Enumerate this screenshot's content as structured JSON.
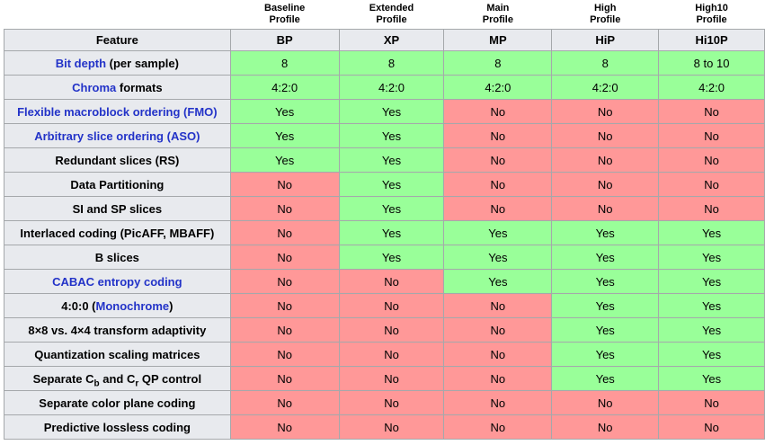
{
  "colors": {
    "yes_bg": "#99FF99",
    "no_bg": "#FF9898",
    "header_bg": "#E8EAEE",
    "border": "#A5A8AB",
    "link": "#2333C8",
    "text": "#000000",
    "page_bg": "#FFFFFF"
  },
  "table": {
    "profile_labels": [
      "Baseline\nProfile",
      "Extended\nProfile",
      "Main\nProfile",
      "High\nProfile",
      "High10\nProfile"
    ],
    "header": {
      "feature": "Feature",
      "columns": [
        "BP",
        "XP",
        "MP",
        "HiP",
        "Hi10P"
      ]
    },
    "rows": [
      {
        "feature": [
          {
            "t": "Bit depth",
            "link": true
          },
          {
            "t": " (per sample)"
          }
        ],
        "values": [
          {
            "t": "8",
            "s": "yes"
          },
          {
            "t": "8",
            "s": "yes"
          },
          {
            "t": "8",
            "s": "yes"
          },
          {
            "t": "8",
            "s": "yes"
          },
          {
            "t": "8 to 10",
            "s": "yes"
          }
        ]
      },
      {
        "feature": [
          {
            "t": "Chroma",
            "link": true
          },
          {
            "t": " formats"
          }
        ],
        "values": [
          {
            "t": "4:2:0",
            "s": "yes"
          },
          {
            "t": "4:2:0",
            "s": "yes"
          },
          {
            "t": "4:2:0",
            "s": "yes"
          },
          {
            "t": "4:2:0",
            "s": "yes"
          },
          {
            "t": "4:2:0",
            "s": "yes"
          }
        ]
      },
      {
        "feature": [
          {
            "t": "Flexible macroblock ordering (FMO)",
            "link": true
          }
        ],
        "values": [
          {
            "t": "Yes",
            "s": "yes"
          },
          {
            "t": "Yes",
            "s": "yes"
          },
          {
            "t": "No",
            "s": "no"
          },
          {
            "t": "No",
            "s": "no"
          },
          {
            "t": "No",
            "s": "no"
          }
        ]
      },
      {
        "feature": [
          {
            "t": "Arbitrary slice ordering (ASO)",
            "link": true
          }
        ],
        "values": [
          {
            "t": "Yes",
            "s": "yes"
          },
          {
            "t": "Yes",
            "s": "yes"
          },
          {
            "t": "No",
            "s": "no"
          },
          {
            "t": "No",
            "s": "no"
          },
          {
            "t": "No",
            "s": "no"
          }
        ]
      },
      {
        "feature": [
          {
            "t": "Redundant slices (RS)"
          }
        ],
        "values": [
          {
            "t": "Yes",
            "s": "yes"
          },
          {
            "t": "Yes",
            "s": "yes"
          },
          {
            "t": "No",
            "s": "no"
          },
          {
            "t": "No",
            "s": "no"
          },
          {
            "t": "No",
            "s": "no"
          }
        ]
      },
      {
        "feature": [
          {
            "t": "Data Partitioning"
          }
        ],
        "values": [
          {
            "t": "No",
            "s": "no"
          },
          {
            "t": "Yes",
            "s": "yes"
          },
          {
            "t": "No",
            "s": "no"
          },
          {
            "t": "No",
            "s": "no"
          },
          {
            "t": "No",
            "s": "no"
          }
        ]
      },
      {
        "feature": [
          {
            "t": "SI and SP slices"
          }
        ],
        "values": [
          {
            "t": "No",
            "s": "no"
          },
          {
            "t": "Yes",
            "s": "yes"
          },
          {
            "t": "No",
            "s": "no"
          },
          {
            "t": "No",
            "s": "no"
          },
          {
            "t": "No",
            "s": "no"
          }
        ]
      },
      {
        "feature": [
          {
            "t": "Interlaced coding (PicAFF, MBAFF)"
          }
        ],
        "values": [
          {
            "t": "No",
            "s": "no"
          },
          {
            "t": "Yes",
            "s": "yes"
          },
          {
            "t": "Yes",
            "s": "yes"
          },
          {
            "t": "Yes",
            "s": "yes"
          },
          {
            "t": "Yes",
            "s": "yes"
          }
        ]
      },
      {
        "feature": [
          {
            "t": "B slices"
          }
        ],
        "values": [
          {
            "t": "No",
            "s": "no"
          },
          {
            "t": "Yes",
            "s": "yes"
          },
          {
            "t": "Yes",
            "s": "yes"
          },
          {
            "t": "Yes",
            "s": "yes"
          },
          {
            "t": "Yes",
            "s": "yes"
          }
        ]
      },
      {
        "feature": [
          {
            "t": "CABAC entropy coding",
            "link": true
          }
        ],
        "values": [
          {
            "t": "No",
            "s": "no"
          },
          {
            "t": "No",
            "s": "no"
          },
          {
            "t": "Yes",
            "s": "yes"
          },
          {
            "t": "Yes",
            "s": "yes"
          },
          {
            "t": "Yes",
            "s": "yes"
          }
        ]
      },
      {
        "feature": [
          {
            "t": "4:0:0 ("
          },
          {
            "t": "Monochrome",
            "link": true
          },
          {
            "t": ")"
          }
        ],
        "values": [
          {
            "t": "No",
            "s": "no"
          },
          {
            "t": "No",
            "s": "no"
          },
          {
            "t": "No",
            "s": "no"
          },
          {
            "t": "Yes",
            "s": "yes"
          },
          {
            "t": "Yes",
            "s": "yes"
          }
        ]
      },
      {
        "feature": [
          {
            "t": "8×8 vs. 4×4 transform adaptivity"
          }
        ],
        "values": [
          {
            "t": "No",
            "s": "no"
          },
          {
            "t": "No",
            "s": "no"
          },
          {
            "t": "No",
            "s": "no"
          },
          {
            "t": "Yes",
            "s": "yes"
          },
          {
            "t": "Yes",
            "s": "yes"
          }
        ]
      },
      {
        "feature": [
          {
            "t": "Quantization scaling matrices"
          }
        ],
        "values": [
          {
            "t": "No",
            "s": "no"
          },
          {
            "t": "No",
            "s": "no"
          },
          {
            "t": "No",
            "s": "no"
          },
          {
            "t": "Yes",
            "s": "yes"
          },
          {
            "t": "Yes",
            "s": "yes"
          }
        ]
      },
      {
        "feature": [
          {
            "t": "Separate C"
          },
          {
            "t": "b",
            "sub": true
          },
          {
            "t": " and C"
          },
          {
            "t": "r",
            "sub": true
          },
          {
            "t": " QP control"
          }
        ],
        "values": [
          {
            "t": "No",
            "s": "no"
          },
          {
            "t": "No",
            "s": "no"
          },
          {
            "t": "No",
            "s": "no"
          },
          {
            "t": "Yes",
            "s": "yes"
          },
          {
            "t": "Yes",
            "s": "yes"
          }
        ]
      },
      {
        "feature": [
          {
            "t": "Separate color plane coding"
          }
        ],
        "values": [
          {
            "t": "No",
            "s": "no"
          },
          {
            "t": "No",
            "s": "no"
          },
          {
            "t": "No",
            "s": "no"
          },
          {
            "t": "No",
            "s": "no"
          },
          {
            "t": "No",
            "s": "no"
          }
        ]
      },
      {
        "feature": [
          {
            "t": "Predictive lossless coding"
          }
        ],
        "values": [
          {
            "t": "No",
            "s": "no"
          },
          {
            "t": "No",
            "s": "no"
          },
          {
            "t": "No",
            "s": "no"
          },
          {
            "t": "No",
            "s": "no"
          },
          {
            "t": "No",
            "s": "no"
          }
        ]
      }
    ]
  }
}
